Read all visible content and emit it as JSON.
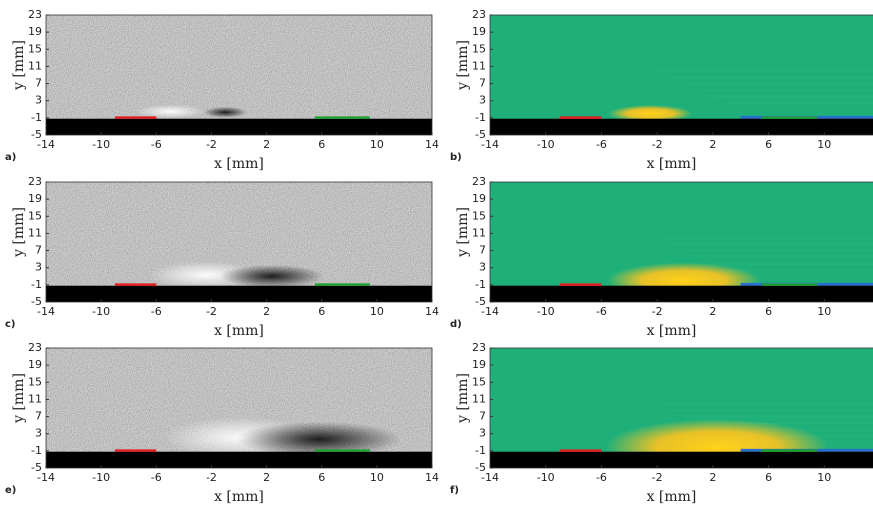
{
  "chart_data": [
    {
      "type": "image",
      "panel_label": "a)",
      "style": "gray",
      "xlabel": "x [mm]",
      "ylabel": "y [mm]",
      "xlim": [
        -14,
        14
      ],
      "ylim": [
        -5,
        23
      ],
      "xticks": [
        -14,
        -10,
        -6,
        -2,
        2,
        6,
        10,
        14
      ],
      "yticks": [
        -5,
        -1,
        3,
        7,
        11,
        15,
        19,
        23
      ]
    },
    {
      "type": "image",
      "panel_label": "b)",
      "style": "color",
      "xlabel": "x [mm]",
      "ylabel": "y [mm]",
      "xlim": [
        -14,
        14
      ],
      "ylim": [
        -5,
        23
      ],
      "xticks": [
        -14,
        -10,
        -6,
        -2,
        2,
        6,
        10,
        14
      ],
      "yticks": [
        -5,
        -1,
        3,
        7,
        11,
        15,
        19,
        23
      ]
    },
    {
      "type": "image",
      "panel_label": "c)",
      "style": "gray",
      "xlabel": "x [mm]",
      "ylabel": "y [mm]",
      "xlim": [
        -14,
        14
      ],
      "ylim": [
        -5,
        23
      ],
      "xticks": [
        -14,
        -10,
        -6,
        -2,
        2,
        6,
        10,
        14
      ],
      "yticks": [
        -5,
        -1,
        3,
        7,
        11,
        15,
        19,
        23
      ]
    },
    {
      "type": "image",
      "panel_label": "d)",
      "style": "color",
      "xlabel": "x [mm]",
      "ylabel": "y [mm]",
      "xlim": [
        -14,
        14
      ],
      "ylim": [
        -5,
        23
      ],
      "xticks": [
        -14,
        -10,
        -6,
        -2,
        2,
        6,
        10,
        14
      ],
      "yticks": [
        -5,
        -1,
        3,
        7,
        11,
        15,
        19,
        23
      ]
    },
    {
      "type": "image",
      "panel_label": "e)",
      "style": "gray",
      "xlabel": "x [mm]",
      "ylabel": "y [mm]",
      "xlim": [
        -14,
        14
      ],
      "ylim": [
        -5,
        23
      ],
      "xticks": [
        -14,
        -10,
        -6,
        -2,
        2,
        6,
        10,
        14
      ],
      "yticks": [
        -5,
        -1,
        3,
        7,
        11,
        15,
        19,
        23
      ]
    },
    {
      "type": "image",
      "panel_label": "f)",
      "style": "color",
      "xlabel": "x [mm]",
      "ylabel": "y [mm]",
      "xlim": [
        -14,
        14
      ],
      "ylim": [
        -5,
        23
      ],
      "xticks": [
        -14,
        -10,
        -6,
        -2,
        2,
        6,
        10,
        14
      ],
      "yticks": [
        -5,
        -1,
        3,
        7,
        11,
        15,
        19,
        23
      ]
    }
  ]
}
